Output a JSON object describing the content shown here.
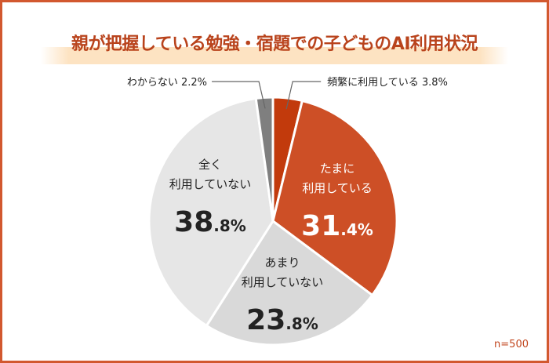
{
  "chart_data": {
    "type": "pie",
    "title": "親が把握している勉強・宿題での子どものAI利用状況",
    "note": "n=500",
    "start_angle_deg": 0,
    "direction": "clockwise",
    "slices": [
      {
        "label": "頻繁に利用している",
        "value": 3.8,
        "color": "#c23a0c",
        "label_position": "outside",
        "text_color": "#222222"
      },
      {
        "label": "たまに\n利用している",
        "value": 31.4,
        "color": "#cd4f26",
        "label_position": "inside",
        "text_color": "#ffffff"
      },
      {
        "label": "あまり\n利用していない",
        "value": 23.8,
        "color": "#d9d9d9",
        "label_position": "inside",
        "text_color": "#222222"
      },
      {
        "label": "全く\n利用していない",
        "value": 38.8,
        "color": "#e6e6e6",
        "label_position": "inside",
        "text_color": "#222222"
      },
      {
        "label": "わからない",
        "value": 2.2,
        "color": "#7f7f7f",
        "label_position": "outside",
        "text_color": "#222222"
      }
    ]
  }
}
